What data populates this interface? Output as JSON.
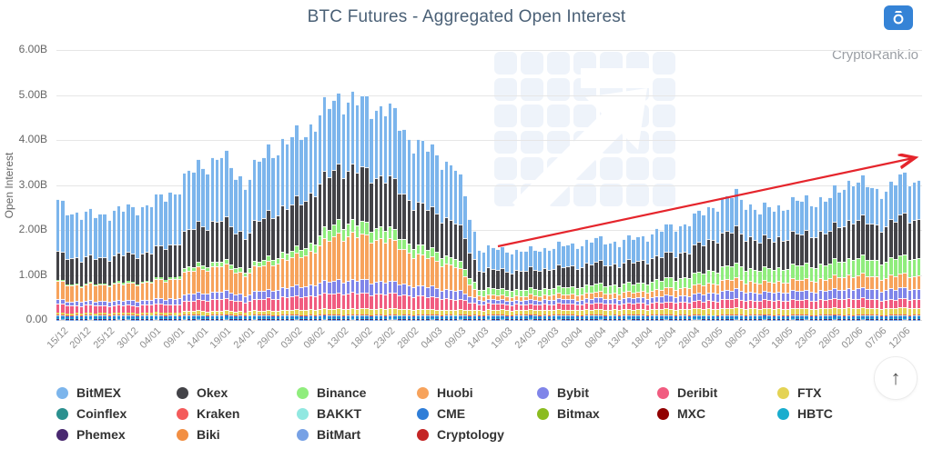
{
  "header": {
    "title": "BTC Futures - Aggregated Open Interest",
    "title_color": "#4a6076",
    "camera_button_color": "#3583d6"
  },
  "watermark_text": "CryptoRank.io",
  "icons": {
    "scroll_top": "↑",
    "camera": "camera-icon"
  },
  "y_axis": {
    "label": "Open Interest",
    "tick_labels": [
      "6.00B",
      "5.00B",
      "4.00B",
      "3.00B",
      "2.00B",
      "1.00B",
      "0.00"
    ]
  },
  "x_axis": {
    "labels": [
      "15/12",
      "20/12",
      "25/12",
      "30/12",
      "04/01",
      "09/01",
      "14/01",
      "19/01",
      "24/01",
      "29/01",
      "03/02",
      "08/02",
      "13/02",
      "18/02",
      "23/02",
      "28/02",
      "04/03",
      "09/03",
      "14/03",
      "19/03",
      "24/03",
      "29/03",
      "03/04",
      "08/04",
      "13/04",
      "18/04",
      "23/04",
      "28/04",
      "03/05",
      "08/05",
      "13/05",
      "18/05",
      "23/05",
      "28/05",
      "02/06",
      "07/06",
      "12/06"
    ]
  },
  "chart_data": {
    "type": "bar",
    "stacking": "normal",
    "title": "BTC Futures - Aggregated Open Interest",
    "xlabel": "",
    "ylabel": "Open Interest",
    "units": "billions USD",
    "ylim": [
      0,
      6.0
    ],
    "grid": true,
    "legend_position": "bottom",
    "bar_interval": "daily; x tick labels every 5 days",
    "x_anchor_dates": [
      "15/12",
      "20/12",
      "25/12",
      "30/12",
      "04/01",
      "09/01",
      "14/01",
      "19/01",
      "24/01",
      "29/01",
      "03/02",
      "08/02",
      "13/02",
      "18/02",
      "23/02",
      "28/02",
      "04/03",
      "09/03",
      "14/03",
      "19/03",
      "24/03",
      "29/03",
      "03/04",
      "08/04",
      "13/04",
      "18/04",
      "23/04",
      "28/04",
      "03/05",
      "08/05",
      "13/05",
      "18/05",
      "23/05",
      "28/05",
      "02/06",
      "07/06",
      "12/06"
    ],
    "series": [
      {
        "name": "BitMEX",
        "color": "#7cb5ec",
        "values": [
          1.1,
          0.95,
          0.95,
          1.0,
          1.05,
          1.15,
          1.3,
          1.4,
          1.15,
          1.4,
          1.45,
          1.5,
          1.55,
          1.5,
          1.55,
          1.35,
          1.3,
          1.2,
          0.45,
          0.45,
          0.42,
          0.45,
          0.47,
          0.5,
          0.48,
          0.52,
          0.58,
          0.62,
          0.72,
          0.78,
          0.65,
          0.7,
          0.72,
          0.72,
          0.88,
          0.75,
          0.85
        ]
      },
      {
        "name": "Okex",
        "color": "#434348",
        "values": [
          0.6,
          0.55,
          0.57,
          0.6,
          0.62,
          0.72,
          0.85,
          0.88,
          0.75,
          0.95,
          1.0,
          1.1,
          1.2,
          1.15,
          1.1,
          0.95,
          0.85,
          0.8,
          0.42,
          0.4,
          0.4,
          0.42,
          0.43,
          0.46,
          0.44,
          0.48,
          0.52,
          0.56,
          0.68,
          0.75,
          0.62,
          0.66,
          0.68,
          0.7,
          0.85,
          0.75,
          0.85
        ]
      },
      {
        "name": "Binance",
        "color": "#90ed7d",
        "values": [
          0.02,
          0.02,
          0.02,
          0.03,
          0.03,
          0.05,
          0.07,
          0.08,
          0.07,
          0.1,
          0.12,
          0.18,
          0.27,
          0.25,
          0.24,
          0.2,
          0.17,
          0.15,
          0.12,
          0.12,
          0.12,
          0.13,
          0.14,
          0.15,
          0.15,
          0.17,
          0.19,
          0.21,
          0.26,
          0.29,
          0.26,
          0.28,
          0.3,
          0.31,
          0.37,
          0.34,
          0.37
        ]
      },
      {
        "name": "Huobi",
        "color": "#f7a35c",
        "values": [
          0.38,
          0.33,
          0.35,
          0.36,
          0.37,
          0.42,
          0.52,
          0.55,
          0.45,
          0.58,
          0.62,
          0.75,
          1.0,
          0.95,
          0.92,
          0.7,
          0.6,
          0.52,
          0.08,
          0.08,
          0.08,
          0.09,
          0.1,
          0.11,
          0.11,
          0.12,
          0.14,
          0.16,
          0.2,
          0.22,
          0.2,
          0.22,
          0.23,
          0.24,
          0.28,
          0.26,
          0.28
        ]
      },
      {
        "name": "Bybit",
        "color": "#8085e9",
        "values": [
          0.08,
          0.07,
          0.08,
          0.08,
          0.09,
          0.11,
          0.14,
          0.15,
          0.13,
          0.17,
          0.19,
          0.22,
          0.27,
          0.26,
          0.25,
          0.22,
          0.2,
          0.18,
          0.07,
          0.07,
          0.07,
          0.08,
          0.08,
          0.09,
          0.09,
          0.1,
          0.12,
          0.13,
          0.16,
          0.18,
          0.16,
          0.17,
          0.18,
          0.18,
          0.21,
          0.19,
          0.21
        ]
      },
      {
        "name": "Deribit",
        "color": "#f15c80",
        "values": [
          0.17,
          0.15,
          0.15,
          0.15,
          0.16,
          0.17,
          0.22,
          0.24,
          0.2,
          0.25,
          0.27,
          0.3,
          0.33,
          0.32,
          0.31,
          0.28,
          0.25,
          0.22,
          0.12,
          0.11,
          0.1,
          0.11,
          0.11,
          0.12,
          0.11,
          0.12,
          0.13,
          0.14,
          0.16,
          0.18,
          0.15,
          0.16,
          0.17,
          0.17,
          0.19,
          0.17,
          0.18
        ]
      },
      {
        "name": "FTX",
        "color": "#e4d354",
        "values": [
          0.04,
          0.04,
          0.04,
          0.04,
          0.05,
          0.05,
          0.07,
          0.07,
          0.06,
          0.08,
          0.09,
          0.1,
          0.12,
          0.12,
          0.12,
          0.11,
          0.1,
          0.09,
          0.09,
          0.09,
          0.09,
          0.09,
          0.09,
          0.1,
          0.1,
          0.1,
          0.11,
          0.11,
          0.12,
          0.13,
          0.12,
          0.12,
          0.12,
          0.13,
          0.14,
          0.13,
          0.13
        ]
      },
      {
        "name": "Coinflex",
        "color": "#2b908f",
        "constant": 0.005
      },
      {
        "name": "Kraken",
        "color": "#f45b5b",
        "constant": 0.02
      },
      {
        "name": "BAKKT",
        "color": "#91e8e1",
        "constant": 0.01
      },
      {
        "name": "CME",
        "color": "#2f7ed8",
        "constant": 0.04
      },
      {
        "name": "Bitmax",
        "color": "#8bbc21",
        "constant": 0.005
      },
      {
        "name": "MXC",
        "color": "#910000",
        "constant": 0.01
      },
      {
        "name": "HBTC",
        "color": "#1aadce",
        "constant": 0.01
      },
      {
        "name": "Phemex",
        "color": "#492970",
        "constant": 0.015
      },
      {
        "name": "Biki",
        "color": "#f28f43",
        "constant": 0.005
      },
      {
        "name": "BitMart",
        "color": "#77a1e5",
        "constant": 0.01
      },
      {
        "name": "Cryptology",
        "color": "#c42525",
        "constant": 0.005
      }
    ],
    "annotations": [
      {
        "type": "trend-arrow",
        "direction": "up-right",
        "color": "#e5252c",
        "from": {
          "date": "14/03",
          "value": 1.65
        },
        "to": {
          "date": "16/06",
          "value": 3.65
        }
      }
    ]
  }
}
